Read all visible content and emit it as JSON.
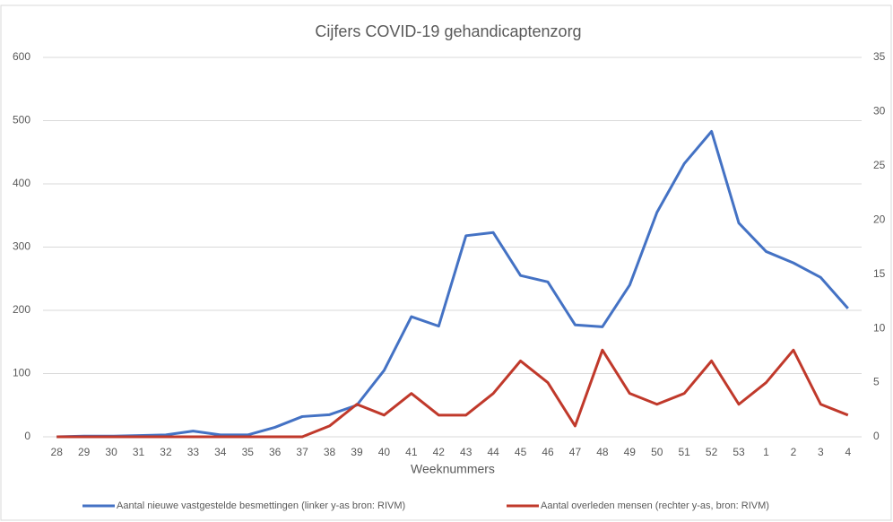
{
  "chart_data": {
    "type": "line",
    "title": "Cijfers COVID-19 gehandicaptenzorg",
    "x_label": "Weeknummers",
    "categories": [
      "28",
      "29",
      "30",
      "31",
      "32",
      "33",
      "34",
      "35",
      "36",
      "37",
      "38",
      "39",
      "40",
      "41",
      "42",
      "43",
      "44",
      "45",
      "46",
      "47",
      "48",
      "49",
      "50",
      "51",
      "52",
      "53",
      "1",
      "2",
      "3",
      "4"
    ],
    "series": [
      {
        "name": "Aantal nieuwe vastgestelde besmettingen  (linker y-as bron: RIVM)",
        "color": "#4472c4",
        "values": [
          0,
          1,
          1,
          2,
          3,
          9,
          3,
          3,
          15,
          32,
          35,
          50,
          105,
          190,
          175,
          318,
          323,
          255,
          245,
          177,
          174,
          240,
          355,
          432,
          483,
          338,
          293,
          275,
          252,
          203
        ]
      },
      {
        "name": "Aantal overleden mensen  (rechter y-as, bron: RIVM)",
        "color": "#c0392b",
        "axis": "y2",
        "values": [
          0,
          0,
          0,
          0,
          0,
          0,
          0,
          0,
          0,
          0,
          1,
          3,
          2,
          4,
          2,
          2,
          4,
          7,
          5,
          1,
          8,
          4,
          3,
          4,
          7,
          3,
          5,
          8,
          3,
          2
        ]
      }
    ],
    "ylim": [
      0,
      600
    ],
    "yticks": [
      0,
      100,
      200,
      300,
      400,
      500,
      600
    ],
    "y2lim": [
      0,
      35
    ],
    "y2ticks": [
      0,
      5,
      10,
      15,
      20,
      25,
      30,
      35
    ],
    "grid": true,
    "legend": "bottom"
  }
}
